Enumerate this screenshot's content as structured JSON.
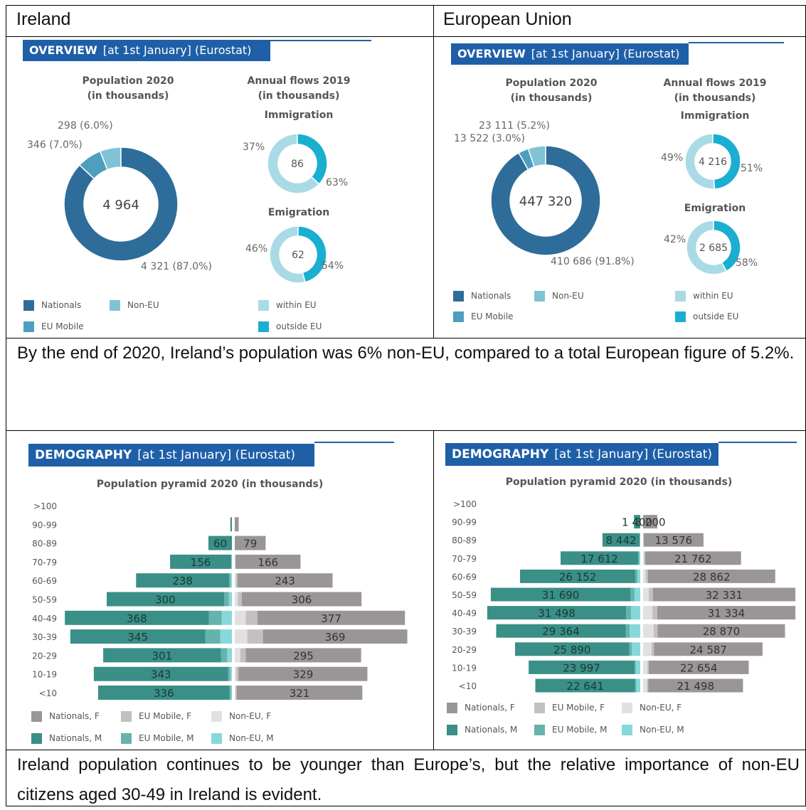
{
  "headers": {
    "ireland": "Ireland",
    "eu": "European Union"
  },
  "overview": {
    "banner_title": "OVERVIEW",
    "banner_sub": "[at 1st January] (Eurostat)",
    "population_title": "Population 2020",
    "population_sub": "(in thousands)",
    "flows_title": "Annual flows 2019",
    "flows_sub": "(in thousands)",
    "immigration": "Immigration",
    "emigration": "Emigration",
    "legend": {
      "nationals": "Nationals",
      "non_eu": "Non-EU",
      "eu_mobile": "EU Mobile",
      "within_eu": "within EU",
      "outside_eu": "outside EU"
    }
  },
  "demography": {
    "banner_title": "DEMOGRAPHY",
    "banner_sub": "[at 1st January] (Eurostat)",
    "pyramid_title": "Population pyramid 2020 (in thousands)",
    "legend": [
      "Nationals, F",
      "EU Mobile, F",
      "Non-EU, F",
      "Nationals, M",
      "EU Mobile, M",
      "Non-EU, M"
    ]
  },
  "captions": {
    "overview": "By the end of 2020, Ireland’s population was 6% non-EU, compared to a total European figure of 5.2%.",
    "demography": "Ireland population continues to be younger than Europe’s, but the relative importance of non-EU citizens aged 30-49 in Ireland is evident."
  },
  "colors": {
    "nationals": "#2e6d99",
    "eu_mobile": "#4d9ebf",
    "non_eu": "#7fc3d4",
    "within_eu": "#a9dbe6",
    "outside_eu": "#1aaed0",
    "pyr_nat_m": "#3a8f87",
    "pyr_eu_m": "#66b3ad",
    "pyr_noneu_m": "#86d8db",
    "pyr_nat_f": "#9a9696",
    "pyr_eu_f": "#c4c0c0",
    "pyr_noneu_f": "#e2e0e0",
    "banner": "#1f5fa8"
  },
  "chart_data": [
    {
      "type": "pie",
      "id": "ie-population",
      "title": "Population 2020 (in thousands)",
      "categories": [
        "Nationals",
        "EU Mobile",
        "Non-EU"
      ],
      "values": [
        4321,
        346,
        298
      ],
      "labels": [
        "4 321 (87.0%)",
        "346 (7.0%)",
        "298 (6.0%)"
      ],
      "center_label": "4 964"
    },
    {
      "type": "pie",
      "id": "ie-immigration",
      "title": "Immigration",
      "categories": [
        "outside EU",
        "within EU"
      ],
      "values": [
        37,
        63
      ],
      "labels": [
        "37%",
        "63%"
      ],
      "center_label": "86"
    },
    {
      "type": "pie",
      "id": "ie-emigration",
      "title": "Emigration",
      "categories": [
        "outside EU",
        "within EU"
      ],
      "values": [
        46,
        54
      ],
      "labels": [
        "46%",
        "54%"
      ],
      "center_label": "62"
    },
    {
      "type": "pie",
      "id": "eu-population",
      "title": "Population 2020 (in thousands)",
      "categories": [
        "Nationals",
        "EU Mobile",
        "Non-EU"
      ],
      "values": [
        410686,
        13522,
        23111
      ],
      "labels": [
        "410 686 (91.8%)",
        "13 522 (3.0%)",
        "23 111 (5.2%)"
      ],
      "center_label": "447 320"
    },
    {
      "type": "pie",
      "id": "eu-immigration",
      "title": "Immigration",
      "categories": [
        "outside EU",
        "within EU"
      ],
      "values": [
        49,
        51
      ],
      "labels": [
        "49%",
        "51%"
      ],
      "center_label": "4 216"
    },
    {
      "type": "pie",
      "id": "eu-emigration",
      "title": "Emigration",
      "categories": [
        "outside EU",
        "within EU"
      ],
      "values": [
        42,
        58
      ],
      "labels": [
        "42%",
        "58%"
      ],
      "center_label": "2 685"
    },
    {
      "type": "bar",
      "id": "ie-pyramid",
      "title": "Population pyramid 2020 (in thousands)",
      "categories": [
        ">100",
        "90-99",
        "80-89",
        "70-79",
        "60-69",
        "50-59",
        "40-49",
        "30-39",
        "20-29",
        "10-19",
        "<10"
      ],
      "series": [
        {
          "name": "Nationals, M",
          "values": [
            0,
            4,
            60,
            156,
            238,
            300,
            368,
            345,
            301,
            343,
            336
          ]
        },
        {
          "name": "EU Mobile, M",
          "values": [
            0,
            0,
            0,
            1,
            4,
            12,
            33,
            38,
            16,
            6,
            4
          ]
        },
        {
          "name": "Non-EU, M",
          "values": [
            0,
            0,
            0,
            1,
            3,
            8,
            26,
            30,
            12,
            4,
            2
          ]
        },
        {
          "name": "Nationals, F",
          "values": [
            0,
            10,
            79,
            166,
            243,
            306,
            377,
            369,
            295,
            329,
            321
          ]
        },
        {
          "name": "EU Mobile, F",
          "values": [
            0,
            0,
            0,
            1,
            4,
            10,
            30,
            40,
            14,
            6,
            3
          ]
        },
        {
          "name": "Non-EU, F",
          "values": [
            0,
            0,
            0,
            1,
            3,
            8,
            28,
            32,
            14,
            4,
            2
          ]
        }
      ]
    },
    {
      "type": "bar",
      "id": "eu-pyramid",
      "title": "Population pyramid 2020 (in thousands)",
      "categories": [
        ">100",
        "90-99",
        "80-89",
        "70-79",
        "60-69",
        "50-59",
        "40-49",
        "30-39",
        "20-29",
        "10-19",
        "<10"
      ],
      "series": [
        {
          "name": "Nationals, M",
          "values": [
            0,
            1400,
            8442,
            17612,
            26152,
            31690,
            31498,
            29364,
            25890,
            23997,
            22641
          ]
        },
        {
          "name": "EU Mobile, M",
          "values": [
            0,
            10,
            60,
            200,
            500,
            900,
            1100,
            900,
            600,
            300,
            250
          ]
        },
        {
          "name": "Non-EU, M",
          "values": [
            0,
            10,
            60,
            250,
            600,
            1300,
            2100,
            2400,
            1900,
            1000,
            900
          ]
        },
        {
          "name": "Nationals, F",
          "values": [
            0,
            3200,
            13576,
            21762,
            28862,
            32331,
            31334,
            28870,
            24587,
            22654,
            21498
          ]
        },
        {
          "name": "EU Mobile, F",
          "values": [
            0,
            10,
            60,
            200,
            500,
            900,
            1100,
            900,
            600,
            300,
            250
          ]
        },
        {
          "name": "Non-EU, F",
          "values": [
            0,
            10,
            60,
            250,
            600,
            1300,
            2100,
            2400,
            1900,
            1000,
            900
          ]
        }
      ]
    }
  ]
}
